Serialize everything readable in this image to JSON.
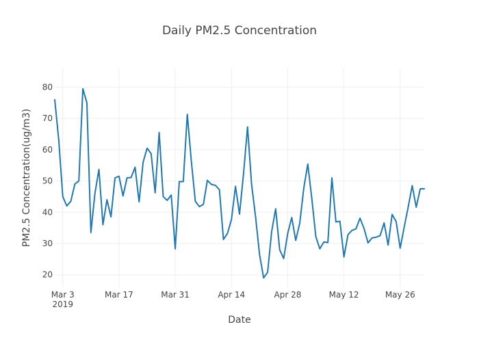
{
  "chart_data": {
    "type": "line",
    "title": "Daily PM2.5 Concentration",
    "xlabel": "Date",
    "ylabel": "PM2.5 Concentration(ug/m3)",
    "x_start": "2019-03-01",
    "x_end": "2019-06-01",
    "ylim": [
      16,
      86
    ],
    "grid": true,
    "legend": "none",
    "x_ticks": [
      {
        "date": "2019-03-03",
        "label": "Mar 3",
        "sublabel": "2019"
      },
      {
        "date": "2019-03-17",
        "label": "Mar 17",
        "sublabel": ""
      },
      {
        "date": "2019-03-31",
        "label": "Mar 31",
        "sublabel": ""
      },
      {
        "date": "2019-04-14",
        "label": "Apr 14",
        "sublabel": ""
      },
      {
        "date": "2019-04-28",
        "label": "Apr 28",
        "sublabel": ""
      },
      {
        "date": "2019-05-12",
        "label": "May 12",
        "sublabel": ""
      },
      {
        "date": "2019-05-26",
        "label": "May 26",
        "sublabel": ""
      }
    ],
    "y_ticks": [
      20,
      30,
      40,
      50,
      60,
      70,
      80
    ],
    "series": [
      {
        "color": "#1f77b4",
        "x": [
          "2019-03-01",
          "2019-03-02",
          "2019-03-03",
          "2019-03-04",
          "2019-03-05",
          "2019-03-06",
          "2019-03-07",
          "2019-03-08",
          "2019-03-09",
          "2019-03-10",
          "2019-03-11",
          "2019-03-12",
          "2019-03-13",
          "2019-03-14",
          "2019-03-15",
          "2019-03-16",
          "2019-03-17",
          "2019-03-18",
          "2019-03-19",
          "2019-03-20",
          "2019-03-21",
          "2019-03-22",
          "2019-03-23",
          "2019-03-24",
          "2019-03-25",
          "2019-03-26",
          "2019-03-27",
          "2019-03-28",
          "2019-03-29",
          "2019-03-30",
          "2019-03-31",
          "2019-04-01",
          "2019-04-02",
          "2019-04-03",
          "2019-04-04",
          "2019-04-05",
          "2019-04-06",
          "2019-04-07",
          "2019-04-08",
          "2019-04-09",
          "2019-04-10",
          "2019-04-11",
          "2019-04-12",
          "2019-04-13",
          "2019-04-14",
          "2019-04-15",
          "2019-04-16",
          "2019-04-17",
          "2019-04-18",
          "2019-04-19",
          "2019-04-20",
          "2019-04-21",
          "2019-04-22",
          "2019-04-23",
          "2019-04-24",
          "2019-04-25",
          "2019-04-26",
          "2019-04-27",
          "2019-04-28",
          "2019-04-29",
          "2019-04-30",
          "2019-05-01",
          "2019-05-02",
          "2019-05-03",
          "2019-05-04",
          "2019-05-05",
          "2019-05-06",
          "2019-05-07",
          "2019-05-08",
          "2019-05-09",
          "2019-05-10",
          "2019-05-11",
          "2019-05-12",
          "2019-05-13",
          "2019-05-14",
          "2019-05-15",
          "2019-05-16",
          "2019-05-17",
          "2019-05-18",
          "2019-05-19",
          "2019-05-20",
          "2019-05-21",
          "2019-05-22",
          "2019-05-23",
          "2019-05-24",
          "2019-05-25",
          "2019-05-26",
          "2019-05-27",
          "2019-05-28",
          "2019-05-29",
          "2019-05-30",
          "2019-05-31",
          "2019-06-01"
        ],
        "values": [
          76,
          63,
          45,
          42,
          43.5,
          49,
          50,
          79.5,
          75,
          33.5,
          46,
          53.7,
          36,
          44,
          38.5,
          51,
          51.5,
          45.2,
          51,
          51.1,
          54.4,
          43.3,
          56,
          60.5,
          58.7,
          46.2,
          65.5,
          45,
          43.8,
          45.5,
          28.3,
          49.8,
          49.8,
          71.3,
          56.4,
          43.5,
          41.8,
          42.5,
          50.2,
          48.9,
          48.6,
          47.2,
          31.3,
          33.2,
          37.7,
          48.3,
          39.4,
          52.3,
          67.3,
          49,
          38.5,
          26.4,
          19,
          20.8,
          33.8,
          41.1,
          28,
          25.2,
          33.2,
          38.3,
          31,
          36.5,
          47.7,
          55.4,
          44.4,
          32.2,
          28.3,
          30.5,
          30.3,
          51,
          36.9,
          37.1,
          25.7,
          32.8,
          34.2,
          34.7,
          38.1,
          34.8,
          30.2,
          31.8,
          32,
          32.5,
          36.6,
          29.5,
          39.3,
          37,
          28.5,
          35.2,
          41.7,
          48.5,
          41.6,
          47.5,
          47.5
        ]
      }
    ]
  }
}
